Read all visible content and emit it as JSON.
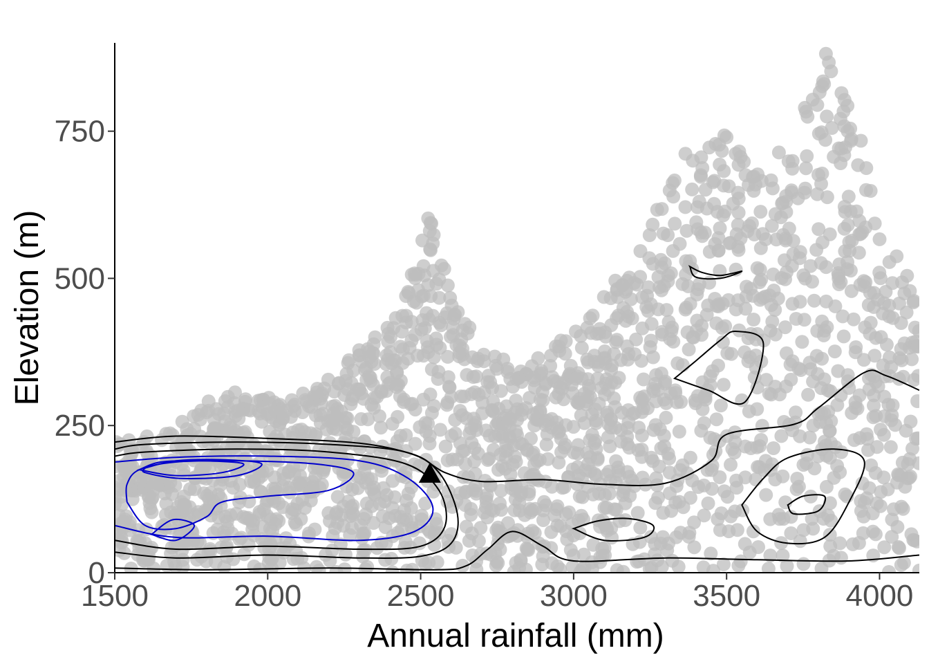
{
  "chart_data": {
    "type": "scatter",
    "title": "",
    "xlabel": "Annual rainfall (mm)",
    "ylabel": "Elevation (m)",
    "xlim": [
      1500,
      4130
    ],
    "ylim": [
      0,
      900
    ],
    "xticks": [
      1500,
      2000,
      2500,
      3000,
      3500,
      4000
    ],
    "xtick_labels": [
      "1500",
      "2000",
      "2500",
      "3000",
      "3500",
      "4000"
    ],
    "yticks": [
      0,
      250,
      500,
      750
    ],
    "ytick_labels": [
      "0",
      "250",
      "500",
      "750"
    ],
    "grid": false,
    "legend": "none",
    "colors": {
      "points": "#bebebe",
      "contour_outer": "#000000",
      "contour_inner": "#0000cc",
      "marker": "#000000"
    },
    "point_cloud": {
      "description_regions": [
        {
          "x_range": [
            1500,
            2500
          ],
          "y_range": [
            0,
            230
          ]
        },
        {
          "x_range": [
            1850,
            2150
          ],
          "y_range": [
            0,
            310
          ]
        },
        {
          "x_range": [
            2150,
            2700
          ],
          "y_range": [
            0,
            400
          ]
        },
        {
          "x_range": [
            2400,
            2600
          ],
          "y_range": [
            250,
            620
          ]
        },
        {
          "x_range": [
            2700,
            3300
          ],
          "y_range": [
            0,
            430
          ]
        },
        {
          "x_range": [
            3200,
            3600
          ],
          "y_range": [
            0,
            750
          ]
        },
        {
          "x_range": [
            3600,
            4130
          ],
          "y_range": [
            0,
            900
          ]
        }
      ]
    },
    "contours": [
      {
        "level": "outer",
        "color": "black",
        "points": [
          [
            1500,
            222
          ],
          [
            1700,
            232
          ],
          [
            2000,
            228
          ],
          [
            2300,
            220
          ],
          [
            2480,
            200
          ],
          [
            2580,
            170
          ],
          [
            2700,
            155
          ],
          [
            2900,
            158
          ],
          [
            3100,
            150
          ],
          [
            3300,
            152
          ],
          [
            3450,
            190
          ],
          [
            3500,
            235
          ],
          [
            3720,
            252
          ],
          [
            3800,
            280
          ],
          [
            3950,
            340
          ],
          [
            4020,
            335
          ],
          [
            4130,
            310
          ]
        ]
      },
      {
        "level": "outer-bottom",
        "color": "black",
        "points": [
          [
            1500,
            8
          ],
          [
            1800,
            5
          ],
          [
            2200,
            8
          ],
          [
            2550,
            5
          ],
          [
            2650,
            12
          ],
          [
            2720,
            40
          ],
          [
            2800,
            70
          ],
          [
            2900,
            45
          ],
          [
            3000,
            20
          ],
          [
            3300,
            25
          ],
          [
            3600,
            22
          ],
          [
            3900,
            20
          ],
          [
            4130,
            30
          ]
        ]
      },
      {
        "level": "mid",
        "color": "black",
        "points": [
          [
            3000,
            75
          ],
          [
            3080,
            88
          ],
          [
            3180,
            92
          ],
          [
            3260,
            80
          ],
          [
            3230,
            60
          ],
          [
            3100,
            55
          ],
          [
            3000,
            75
          ]
        ]
      },
      {
        "level": "mid",
        "color": "black",
        "points": [
          [
            3380,
            520
          ],
          [
            3420,
            510
          ],
          [
            3480,
            505
          ],
          [
            3550,
            512
          ],
          [
            3480,
            500
          ],
          [
            3400,
            502
          ],
          [
            3380,
            520
          ]
        ]
      },
      {
        "level": "mid",
        "color": "black",
        "points": [
          [
            3330,
            330
          ],
          [
            3400,
            360
          ],
          [
            3480,
            395
          ],
          [
            3530,
            410
          ],
          [
            3620,
            390
          ],
          [
            3560,
            290
          ],
          [
            3440,
            310
          ],
          [
            3330,
            330
          ]
        ]
      },
      {
        "level": "mid",
        "color": "black",
        "points": [
          [
            3550,
            115
          ],
          [
            3620,
            160
          ],
          [
            3700,
            195
          ],
          [
            3850,
            210
          ],
          [
            3950,
            190
          ],
          [
            3900,
            120
          ],
          [
            3820,
            60
          ],
          [
            3700,
            50
          ],
          [
            3600,
            70
          ],
          [
            3550,
            115
          ]
        ]
      },
      {
        "level": "inner",
        "color": "black",
        "points": [
          [
            3700,
            115
          ],
          [
            3750,
            130
          ],
          [
            3820,
            130
          ],
          [
            3800,
            105
          ],
          [
            3720,
            100
          ],
          [
            3700,
            115
          ]
        ]
      },
      {
        "level": "inner",
        "color": "blue",
        "points": [
          [
            1580,
            175
          ],
          [
            1650,
            188
          ],
          [
            1780,
            190
          ],
          [
            1920,
            185
          ],
          [
            1850,
            170
          ],
          [
            1700,
            165
          ],
          [
            1580,
            175
          ]
        ]
      },
      {
        "level": "inner",
        "color": "blue",
        "points": [
          [
            1620,
            65
          ],
          [
            1690,
            90
          ],
          [
            1760,
            80
          ],
          [
            1700,
            55
          ],
          [
            1620,
            65
          ]
        ]
      }
    ],
    "marker": {
      "shape": "triangle",
      "x": 2530,
      "y": 168
    }
  }
}
